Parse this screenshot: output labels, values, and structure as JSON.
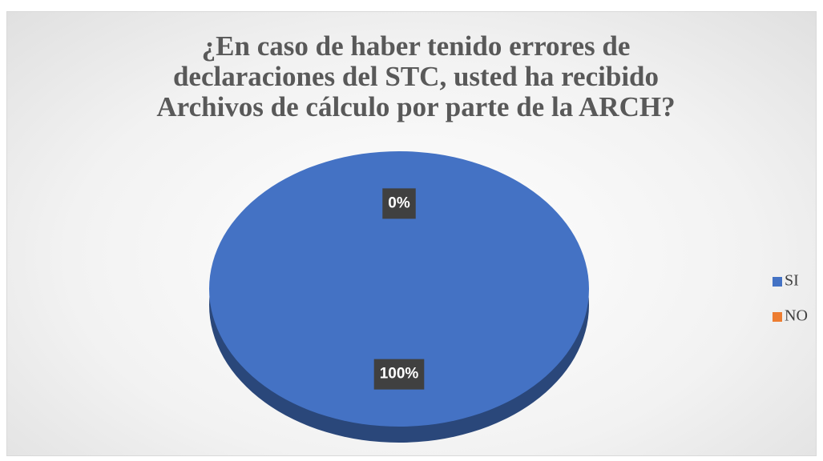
{
  "chart_data": {
    "type": "pie",
    "title": "¿En caso de haber tenido errores de declaraciones del STC, usted ha recibido Archivos de cálculo por parte de la ARCH?",
    "categories": [
      "SI",
      "NO"
    ],
    "values": [
      100,
      0
    ],
    "value_labels": [
      "100%",
      "0%"
    ],
    "colors": [
      "#4472c4",
      "#ed7d31"
    ],
    "legend": "right"
  }
}
